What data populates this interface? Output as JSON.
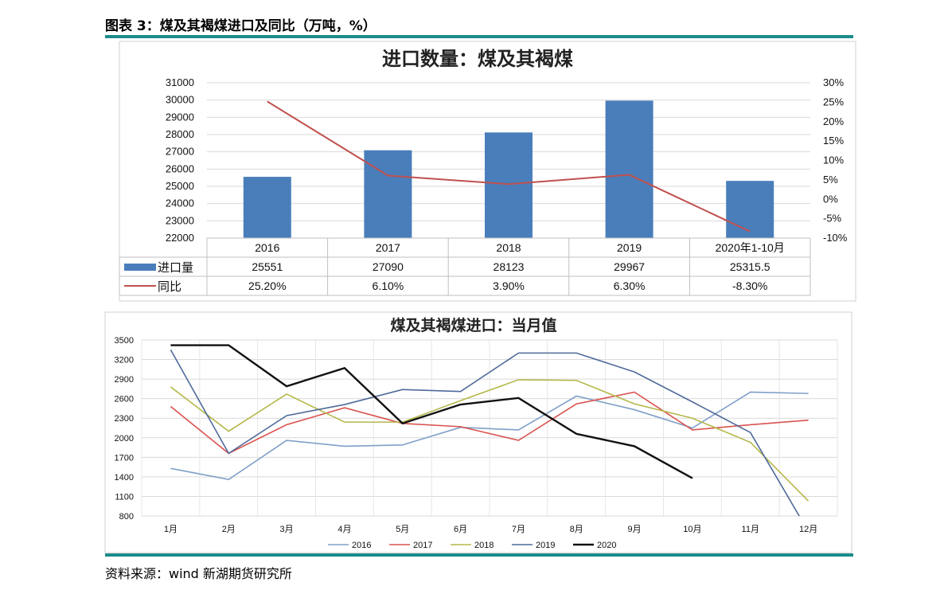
{
  "header": {
    "title": "图表 3：煤及其褐煤进口及同比（万吨，%）",
    "source": "资料来源：wind 新湖期货研究所"
  },
  "colors": {
    "bar": "#4a7ebb",
    "yoy_line": "#c0504d",
    "rule": "#1a8c8c",
    "s2016": "#7f9fc8",
    "s2017": "#d9534f",
    "s2018": "#b5b84a",
    "s2019": "#4f6a9a",
    "s2020": "#111111"
  },
  "chart_data": [
    {
      "type": "bar",
      "title": "进口数量：煤及其褐煤",
      "categories": [
        "2016",
        "2017",
        "2018",
        "2019",
        "2020年1-10月"
      ],
      "y_ticks": [
        "31000",
        "30000",
        "29000",
        "28000",
        "27000",
        "26000",
        "25000",
        "24000",
        "23000",
        "22000"
      ],
      "ylim": [
        22000,
        31000
      ],
      "y2_ticks": [
        "30%",
        "25%",
        "20%",
        "15%",
        "10%",
        "5%",
        "0%",
        "-5%",
        "-10%"
      ],
      "y2lim": [
        -10,
        30
      ],
      "series": [
        {
          "name": "进口量",
          "type": "bar",
          "axis": "left",
          "values": [
            25551,
            27090,
            28123,
            29967,
            25315.5
          ],
          "labels": [
            "25551",
            "27090",
            "28123",
            "29967",
            "25315.5"
          ]
        },
        {
          "name": "同比",
          "type": "line",
          "axis": "right",
          "values": [
            25.2,
            6.1,
            3.9,
            6.3,
            -8.3
          ],
          "labels": [
            "25.20%",
            "6.10%",
            "3.90%",
            "6.30%",
            "-8.30%"
          ]
        }
      ],
      "grid": true,
      "legend": "data-table"
    },
    {
      "type": "line",
      "title": "煤及其褐煤进口：当月值",
      "categories": [
        "1月",
        "2月",
        "3月",
        "4月",
        "5月",
        "6月",
        "7月",
        "8月",
        "9月",
        "10月",
        "11月",
        "12月"
      ],
      "y_ticks": [
        "3500",
        "3200",
        "2900",
        "2600",
        "2300",
        "2000",
        "1700",
        "1400",
        "1100",
        "800"
      ],
      "ylim": [
        800,
        3500
      ],
      "series": [
        {
          "name": "2016",
          "values": [
            1530,
            1360,
            1960,
            1870,
            1890,
            2160,
            2120,
            2640,
            2430,
            2150,
            2700,
            2680
          ]
        },
        {
          "name": "2017",
          "values": [
            2480,
            1760,
            2200,
            2460,
            2220,
            2170,
            1960,
            2520,
            2700,
            2120,
            2200,
            2270
          ]
        },
        {
          "name": "2018",
          "values": [
            2780,
            2100,
            2670,
            2240,
            2240,
            2570,
            2890,
            2880,
            2520,
            2300,
            1930,
            1030
          ]
        },
        {
          "name": "2019",
          "values": [
            3350,
            1760,
            2340,
            2510,
            2740,
            2710,
            3300,
            3300,
            3010,
            2550,
            2080,
            560
          ]
        },
        {
          "name": "2020",
          "values": [
            3420,
            3420,
            2790,
            3070,
            2220,
            2510,
            2610,
            2060,
            1870,
            1380,
            null,
            null
          ]
        }
      ],
      "grid": true,
      "legend": "bottom"
    }
  ]
}
